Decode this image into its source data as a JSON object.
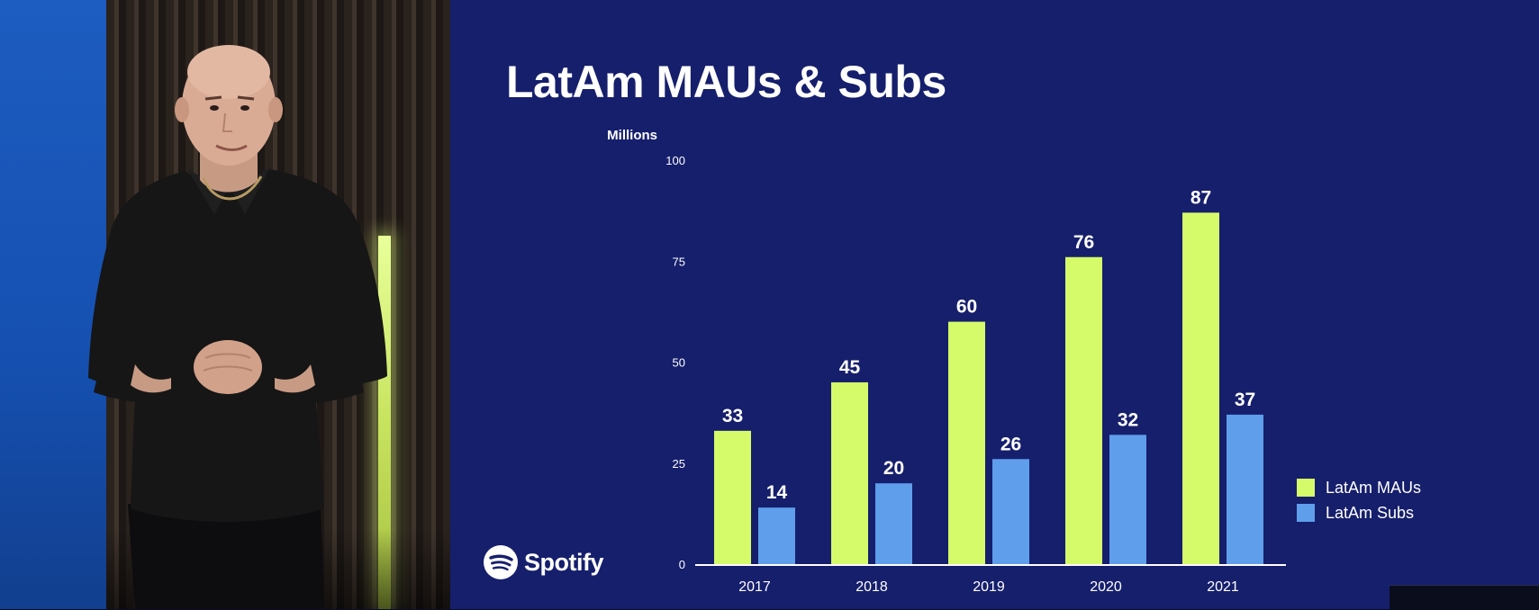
{
  "slide": {
    "title": "LatAm MAUs & Subs",
    "brand": "Spotify"
  },
  "colors": {
    "background": "#161f6c",
    "maus": "#d5fb6a",
    "subs": "#5f9eeb",
    "text": "#ffffff",
    "axis": "#ffffff"
  },
  "icons": {
    "brand_logo": "spotify-logo-icon"
  },
  "chart_data": {
    "type": "bar",
    "title": "LatAm MAUs & Subs",
    "unit_label": "Millions",
    "categories": [
      "2017",
      "2018",
      "2019",
      "2020",
      "2021"
    ],
    "series": [
      {
        "name": "LatAm MAUs",
        "values": [
          33,
          45,
          60,
          76,
          87
        ]
      },
      {
        "name": "LatAm Subs",
        "values": [
          14,
          20,
          26,
          32,
          37
        ]
      }
    ],
    "ylim": [
      0,
      100
    ],
    "yticks": [
      "0",
      "25",
      "50",
      "75",
      "100"
    ],
    "grid": false,
    "legend_position": "right",
    "data_labels": true
  }
}
